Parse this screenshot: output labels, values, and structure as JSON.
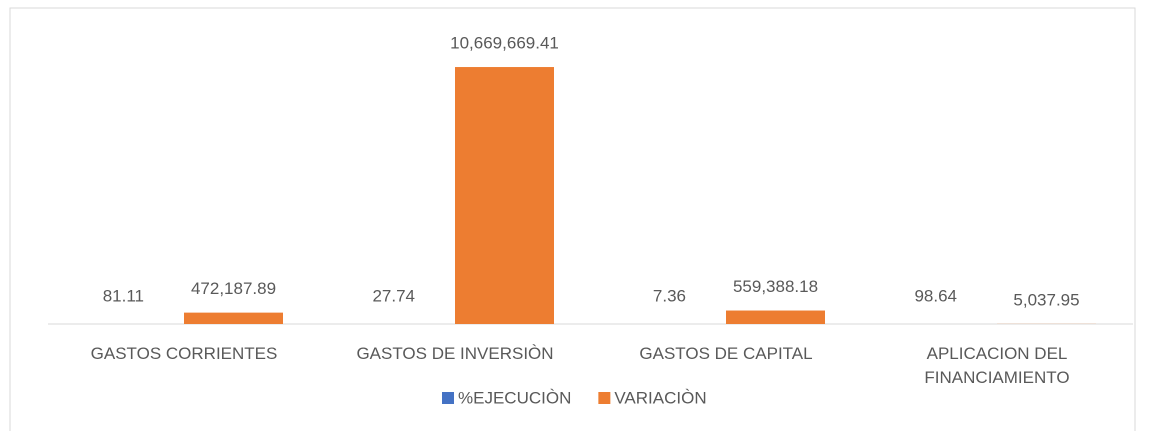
{
  "chart_data": {
    "type": "bar",
    "categories": [
      "GASTOS CORRIENTES",
      "GASTOS DE INVERSIÒN",
      "GASTOS DE CAPITAL",
      "APLICACION DEL FINANCIAMIENTO"
    ],
    "series": [
      {
        "name": "%EJECUCIÒN",
        "color": "#4472c4",
        "values": [
          81.11,
          27.74,
          7.36,
          98.64
        ]
      },
      {
        "name": "VARIACIÒN",
        "color": "#ed7d31",
        "values": [
          472187.89,
          10669669.41,
          559388.18,
          5037.95
        ],
        "value_labels": [
          "472,187.89",
          "10,669,669.41",
          "559,388.18",
          "5,037.95"
        ]
      }
    ],
    "ylim": [
      0,
      12000000
    ],
    "legend": "bottom"
  }
}
